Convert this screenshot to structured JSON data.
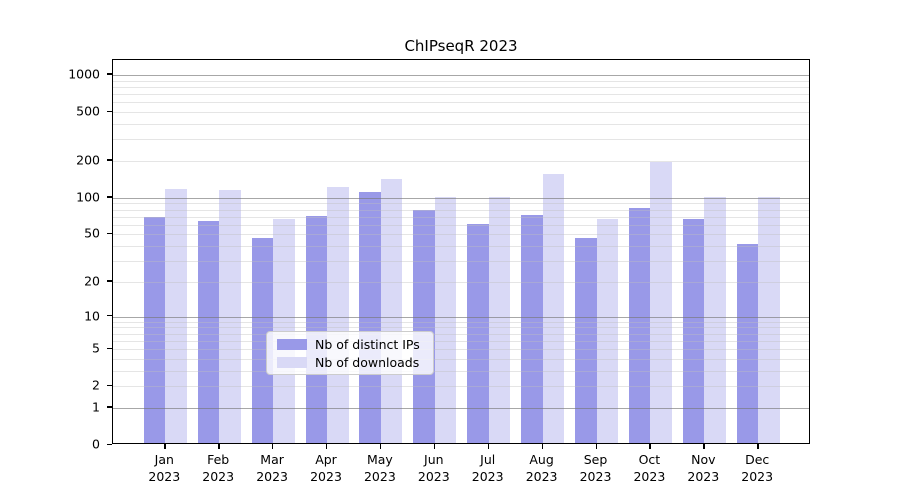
{
  "window": {
    "title": "ChIPseqR 2023"
  },
  "chart_data": {
    "type": "bar",
    "title": "ChIPseqR 2023",
    "subtitle": "",
    "xlabel": "",
    "ylabel": "",
    "scale": "log10(1+x)",
    "grid": true,
    "legend_position": "lower center",
    "categories": [
      "Jan 2023",
      "Feb 2023",
      "Mar 2023",
      "Apr 2023",
      "May 2023",
      "Jun 2023",
      "Jul 2023",
      "Aug 2023",
      "Sep 2023",
      "Oct 2023",
      "Nov 2023",
      "Dec 2023"
    ],
    "series": [
      {
        "name": "Nb of distinct IPs",
        "color": "#9999e8",
        "values": [
          67,
          62,
          45,
          68,
          108,
          76,
          59,
          69,
          45,
          80,
          64,
          40
        ]
      },
      {
        "name": "Nb of downloads",
        "color": "#d9d9f6",
        "values": [
          113,
          112,
          65,
          118,
          137,
          98,
          97,
          150,
          64,
          190,
          97,
          98
        ]
      }
    ],
    "yticks": [
      0,
      1,
      2,
      5,
      10,
      20,
      50,
      100,
      200,
      500,
      1000
    ],
    "minor_yticks": [
      3,
      4,
      6,
      7,
      8,
      9,
      30,
      40,
      60,
      70,
      80,
      90,
      300,
      400,
      600,
      700,
      800,
      900
    ],
    "ylim": [
      0,
      1320
    ]
  },
  "colors": {
    "ips_bar": "#9999e8",
    "downloads_bar": "#d9d9f6",
    "major_gridline": "#787878",
    "minor_gridline": "#bebebe",
    "axis": "#000000",
    "legend_border": "#cccccc",
    "background": "#ffffff"
  }
}
